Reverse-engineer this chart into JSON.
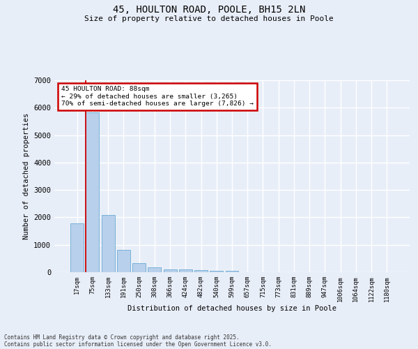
{
  "title1": "45, HOULTON ROAD, POOLE, BH15 2LN",
  "title2": "Size of property relative to detached houses in Poole",
  "xlabel": "Distribution of detached houses by size in Poole",
  "ylabel": "Number of detached properties",
  "categories": [
    "17sqm",
    "75sqm",
    "133sqm",
    "191sqm",
    "250sqm",
    "308sqm",
    "366sqm",
    "424sqm",
    "482sqm",
    "540sqm",
    "599sqm",
    "657sqm",
    "715sqm",
    "773sqm",
    "831sqm",
    "889sqm",
    "947sqm",
    "1006sqm",
    "1064sqm",
    "1122sqm",
    "1180sqm"
  ],
  "values": [
    1780,
    5820,
    2080,
    820,
    340,
    175,
    110,
    95,
    80,
    55,
    50,
    0,
    0,
    0,
    0,
    0,
    0,
    0,
    0,
    0,
    0
  ],
  "bar_color": "#b8d0eb",
  "bar_edge_color": "#6aaad4",
  "bg_color": "#e8eef8",
  "grid_color": "#ffffff",
  "annotation_title": "45 HOULTON ROAD: 88sqm",
  "annotation_line1": "← 29% of detached houses are smaller (3,265)",
  "annotation_line2": "70% of semi-detached houses are larger (7,826) →",
  "annotation_box_color": "#ffffff",
  "annotation_box_edge_color": "#cc0000",
  "vline_color": "#cc0000",
  "vline_x": 1,
  "footer1": "Contains HM Land Registry data © Crown copyright and database right 2025.",
  "footer2": "Contains public sector information licensed under the Open Government Licence v3.0.",
  "ylim": [
    0,
    7000
  ],
  "yticks": [
    0,
    1000,
    2000,
    3000,
    4000,
    5000,
    6000,
    7000
  ]
}
